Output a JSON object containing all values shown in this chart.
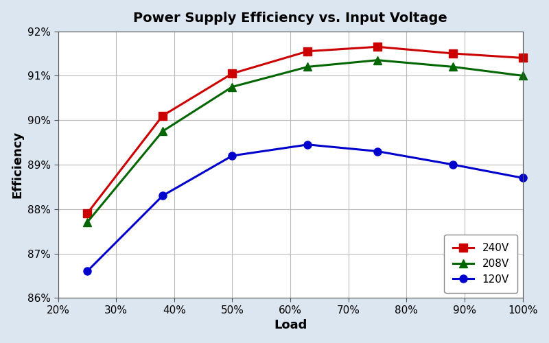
{
  "title": "Power Supply Efficiency vs. Input Voltage",
  "xlabel": "Load",
  "ylabel": "Efficiency",
  "background_color": "#dce6f1",
  "plot_bg_color": "#ffffff",
  "x_values": [
    25,
    38,
    50,
    63,
    75,
    88,
    100
  ],
  "series": [
    {
      "label": "240V",
      "color": "#cc0000",
      "marker": "s",
      "y": [
        87.9,
        90.1,
        91.05,
        91.55,
        91.65,
        91.5,
        91.4
      ]
    },
    {
      "label": "208V",
      "color": "#006600",
      "marker": "^",
      "y": [
        87.7,
        89.75,
        90.75,
        91.2,
        91.35,
        91.2,
        91.0
      ]
    },
    {
      "label": "120V",
      "color": "#0000cc",
      "marker": "o",
      "y": [
        86.6,
        88.3,
        89.2,
        89.45,
        89.3,
        89.0,
        88.7
      ]
    }
  ],
  "ylim": [
    86.0,
    92.0
  ],
  "xlim": [
    20,
    100
  ],
  "yticks": [
    86,
    87,
    88,
    89,
    90,
    91,
    92
  ],
  "xticks": [
    20,
    30,
    40,
    50,
    60,
    70,
    80,
    90,
    100
  ],
  "xtick_labels": [
    "20%",
    "30%",
    "40%",
    "50%",
    "60%",
    "70%",
    "80%",
    "90%",
    "100%"
  ],
  "ytick_labels": [
    "86%",
    "87%",
    "88%",
    "89%",
    "90%",
    "91%",
    "92%"
  ],
  "grid_color": "#bbbbbb",
  "title_fontsize": 14,
  "axis_label_fontsize": 13,
  "tick_fontsize": 11,
  "legend_fontsize": 11,
  "linewidth": 2.2,
  "markersize": 8
}
